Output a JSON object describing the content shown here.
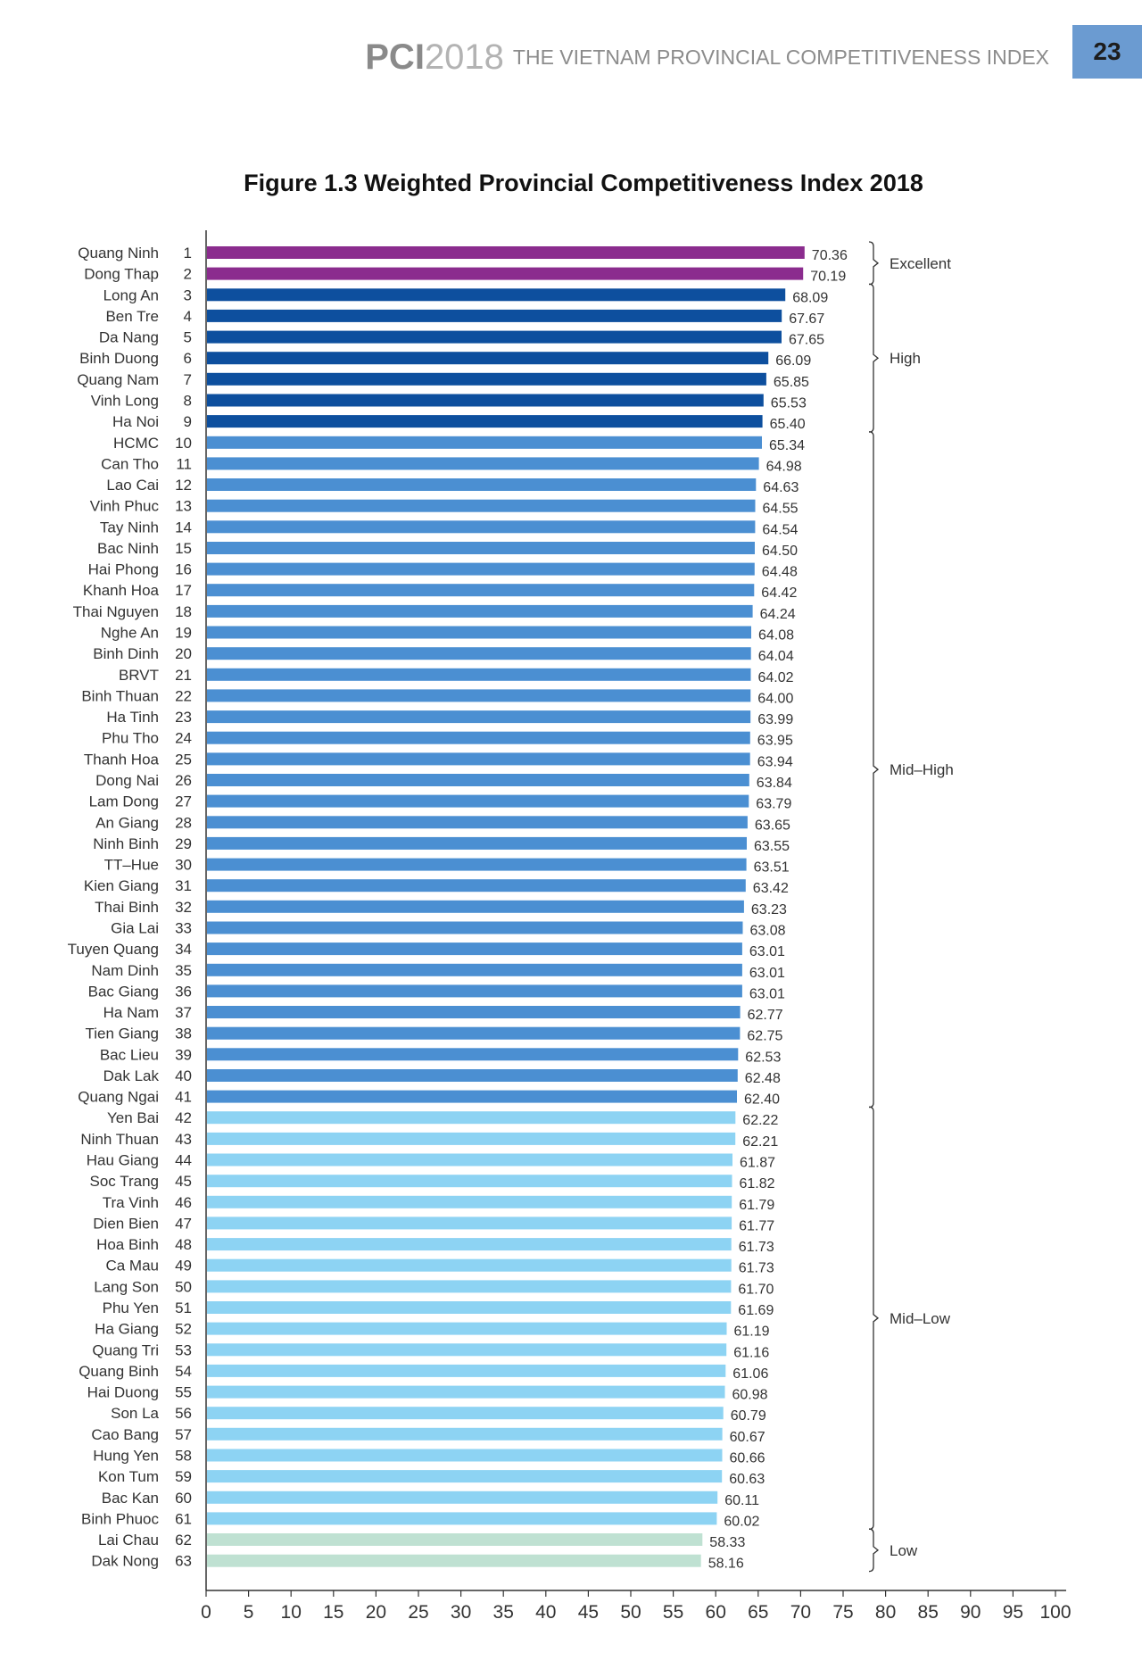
{
  "header": {
    "brand_pci": "PCI",
    "brand_year": "2018",
    "brand_title": "THE VIETNAM PROVINCIAL COMPETITIVENESS INDEX",
    "page_number": "23"
  },
  "figure_title": "Figure 1.3 Weighted Provincial Competitiveness Index 2018",
  "chart_data": {
    "type": "bar",
    "orientation": "horizontal",
    "title": "Figure 1.3 Weighted Provincial Competitiveness Index 2018",
    "xlim": [
      0,
      100
    ],
    "xticks": [
      0,
      5,
      10,
      15,
      20,
      25,
      30,
      35,
      40,
      45,
      50,
      55,
      60,
      65,
      70,
      75,
      80,
      85,
      90,
      95,
      100
    ],
    "categories": [
      "Quang Ninh",
      "Dong Thap",
      "Long An",
      "Ben Tre",
      "Da Nang",
      "Binh Duong",
      "Quang Nam",
      "Vinh Long",
      "Ha Noi",
      "HCMC",
      "Can Tho",
      "Lao Cai",
      "Vinh Phuc",
      "Tay Ninh",
      "Bac Ninh",
      "Hai Phong",
      "Khanh Hoa",
      "Thai Nguyen",
      "Nghe An",
      "Binh Dinh",
      "BRVT",
      "Binh Thuan",
      "Ha Tinh",
      "Phu Tho",
      "Thanh Hoa",
      "Dong Nai",
      "Lam Dong",
      "An Giang",
      "Ninh Binh",
      "TT–Hue",
      "Kien Giang",
      "Thai Binh",
      "Gia Lai",
      "Tuyen Quang",
      "Nam Dinh",
      "Bac Giang",
      "Ha Nam",
      "Tien Giang",
      "Bac Lieu",
      "Dak Lak",
      "Quang Ngai",
      "Yen Bai",
      "Ninh Thuan",
      "Hau Giang",
      "Soc Trang",
      "Tra Vinh",
      "Dien Bien",
      "Hoa Binh",
      "Ca Mau",
      "Lang Son",
      "Phu Yen",
      "Ha Giang",
      "Quang Tri",
      "Quang Binh",
      "Hai Duong",
      "Son La",
      "Cao Bang",
      "Hung Yen",
      "Kon Tum",
      "Bac Kan",
      "Binh Phuoc",
      "Lai Chau",
      "Dak Nong"
    ],
    "ranks": [
      1,
      2,
      3,
      4,
      5,
      6,
      7,
      8,
      9,
      10,
      11,
      12,
      13,
      14,
      15,
      16,
      17,
      18,
      19,
      20,
      21,
      22,
      23,
      24,
      25,
      26,
      27,
      28,
      29,
      30,
      31,
      32,
      33,
      34,
      35,
      36,
      37,
      38,
      39,
      40,
      41,
      42,
      43,
      44,
      45,
      46,
      47,
      48,
      49,
      50,
      51,
      52,
      53,
      54,
      55,
      56,
      57,
      58,
      59,
      60,
      61,
      62,
      63
    ],
    "values": [
      70.36,
      70.19,
      68.09,
      67.67,
      67.65,
      66.09,
      65.85,
      65.53,
      65.4,
      65.34,
      64.98,
      64.63,
      64.55,
      64.54,
      64.5,
      64.48,
      64.42,
      64.24,
      64.08,
      64.04,
      64.02,
      64.0,
      63.99,
      63.95,
      63.94,
      63.84,
      63.79,
      63.65,
      63.55,
      63.51,
      63.42,
      63.23,
      63.08,
      63.01,
      63.01,
      63.01,
      62.77,
      62.75,
      62.53,
      62.48,
      62.4,
      62.22,
      62.21,
      61.87,
      61.82,
      61.79,
      61.77,
      61.73,
      61.73,
      61.7,
      61.69,
      61.19,
      61.16,
      61.06,
      60.98,
      60.79,
      60.67,
      60.66,
      60.63,
      60.11,
      60.02,
      58.33,
      58.16
    ],
    "value_labels": [
      "70.36",
      "70.19",
      "68.09",
      "67.67",
      "67.65",
      "66.09",
      "65.85",
      "65.53",
      "65.40",
      "65.34",
      "64.98",
      "64.63",
      "64.55",
      "64.54",
      "64.50",
      "64.48",
      "64.42",
      "64.24",
      "64.08",
      "64.04",
      "64.02",
      "64.00",
      "63.99",
      "63.95",
      "63.94",
      "63.84",
      "63.79",
      "63.65",
      "63.55",
      "63.51",
      "63.42",
      "63.23",
      "63.08",
      "63.01",
      "63.01",
      "63.01",
      "62.77",
      "62.75",
      "62.53",
      "62.48",
      "62.40",
      "62.22",
      "62.21",
      "61.87",
      "61.82",
      "61.79",
      "61.77",
      "61.73",
      "61.73",
      "61.70",
      "61.69",
      "61.19",
      "61.16",
      "61.06",
      "60.98",
      "60.79",
      "60.67",
      "60.66",
      "60.63",
      "60.11",
      "60.02",
      "58.33",
      "58.16"
    ],
    "groups": [
      {
        "label": "Excellent",
        "first_rank": 1,
        "last_rank": 2,
        "color": "#8b2c8e"
      },
      {
        "label": "High",
        "first_rank": 3,
        "last_rank": 9,
        "color": "#0d4f9e"
      },
      {
        "label": "Mid–High",
        "first_rank": 10,
        "last_rank": 41,
        "color": "#4b8fd2"
      },
      {
        "label": "Mid–Low",
        "first_rank": 42,
        "last_rank": 61,
        "color": "#8dd3f3"
      },
      {
        "label": "Low",
        "first_rank": 62,
        "last_rank": 63,
        "color": "#bfe1d2"
      }
    ]
  }
}
